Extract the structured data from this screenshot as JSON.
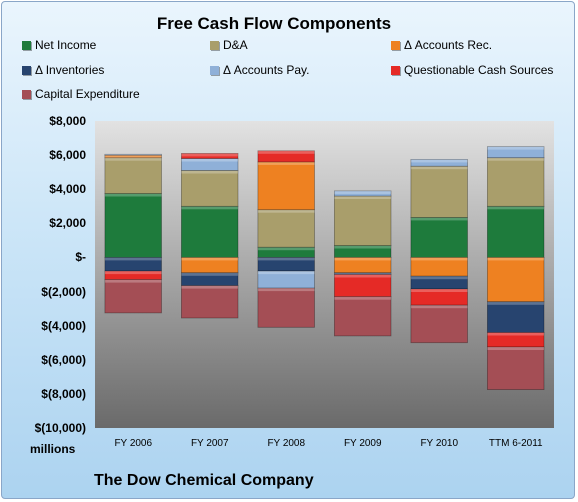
{
  "chart_data": {
    "type": "bar",
    "stacked": true,
    "title": "Free Cash Flow Components",
    "ylabel": "millions",
    "footer": "The Dow Chemical Company",
    "ylim": [
      -10000,
      8000
    ],
    "ytick_values": [
      -10000,
      -8000,
      -6000,
      -4000,
      -2000,
      0,
      2000,
      4000,
      6000,
      8000
    ],
    "ytick_labels": [
      "$(10,000)",
      "$(8,000)",
      "$(6,000)",
      "$(4,000)",
      "$(2,000)",
      "$-",
      "$2,000",
      "$4,000",
      "$6,000",
      "$8,000"
    ],
    "categories": [
      "FY 2006",
      "FY 2007",
      "FY 2008",
      "FY 2009",
      "FY 2010",
      "TTM 6-2011"
    ],
    "legend_position": "top",
    "grid": false,
    "series": [
      {
        "name": "Net Income",
        "color": "#1e7b3c",
        "values": [
          3750,
          3000,
          600,
          700,
          2350,
          3000
        ]
      },
      {
        "name": "D&A",
        "color": "#a99e6b",
        "values": [
          2100,
          2100,
          2200,
          2900,
          3000,
          2850
        ]
      },
      {
        "name": "Δ Accounts Rec.",
        "color": "#ee8121",
        "values": [
          150,
          -900,
          2800,
          -900,
          -1100,
          -2600
        ]
      },
      {
        "name": "Δ Inventories",
        "color": "#27446f",
        "values": [
          -800,
          -750,
          -800,
          -100,
          -750,
          -1800
        ]
      },
      {
        "name": "Δ Accounts Pay.",
        "color": "#8fb0d8",
        "values": [
          50,
          700,
          -1000,
          300,
          400,
          650
        ]
      },
      {
        "name": "Questionable Cash Sources",
        "color": "#e52a26",
        "values": [
          -500,
          300,
          650,
          -1300,
          -950,
          -850
        ]
      },
      {
        "name": "Capital Expenditure",
        "color": "#a44e55",
        "values": [
          -1950,
          -1900,
          -2300,
          -2300,
          -2200,
          -2500
        ]
      }
    ]
  }
}
